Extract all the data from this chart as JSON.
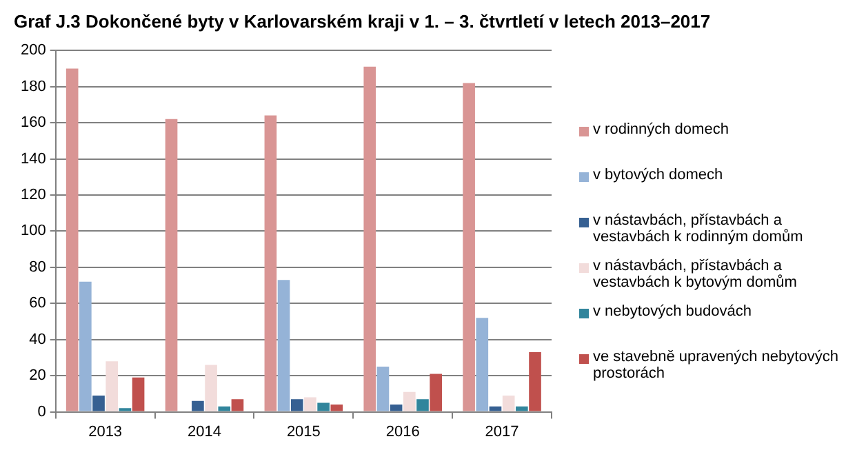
{
  "chart_data": {
    "type": "bar",
    "title": "Graf J.3 Dokončené byty v Karlovarském kraji v 1. – 3. čtvrtletí v letech 2013–2017",
    "categories": [
      "2013",
      "2014",
      "2015",
      "2016",
      "2017"
    ],
    "series": [
      {
        "name": "v rodinných domech",
        "color": "#d99594",
        "values": [
          190,
          162,
          164,
          191,
          182
        ]
      },
      {
        "name": "v bytových domech",
        "color": "#95b3d7",
        "values": [
          72,
          0,
          73,
          25,
          52
        ]
      },
      {
        "name": "v nástavbách, přístavbách a vestavbách k rodinným domům",
        "color": "#366092",
        "values": [
          9,
          6,
          7,
          4,
          3
        ]
      },
      {
        "name": "v nástavbách, přístavbách a vestavbách k bytovým domům",
        "color": "#f2dcdb",
        "values": [
          28,
          26,
          8,
          11,
          9
        ]
      },
      {
        "name": "v nebytových budovách",
        "color": "#31859c",
        "values": [
          2,
          3,
          5,
          7,
          3
        ]
      },
      {
        "name": "ve stavebně upravených nebytových prostorách",
        "color": "#c0504d",
        "values": [
          19,
          7,
          4,
          21,
          33
        ]
      }
    ],
    "ylim": [
      0,
      200
    ],
    "yticks": [
      0,
      20,
      40,
      60,
      80,
      100,
      120,
      140,
      160,
      180,
      200
    ],
    "grid": "y",
    "legend": "right"
  }
}
